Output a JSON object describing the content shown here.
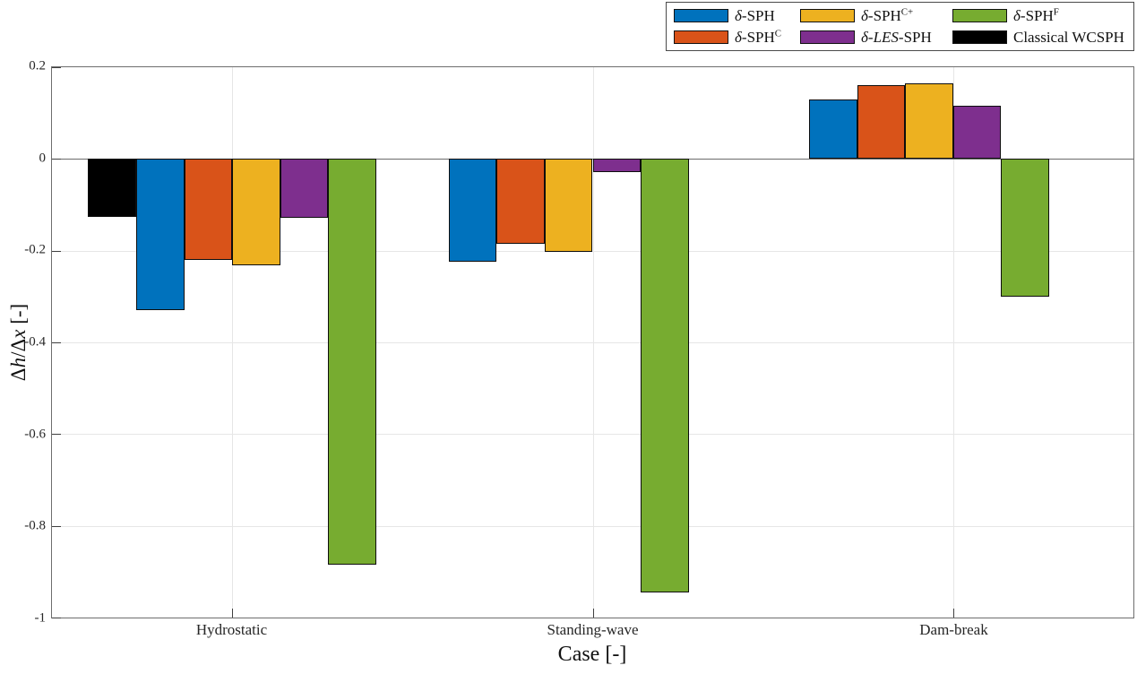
{
  "figure": {
    "xlabel": "Case [-]",
    "ylabel": "Δh/Δx [-]",
    "ylabel_parts": [
      {
        "t": "Δ"
      },
      {
        "t": "h",
        "s": "i"
      },
      {
        "t": "/Δ"
      },
      {
        "t": "x",
        "s": "i"
      },
      {
        "t": " [-]"
      }
    ],
    "background_color": "#ffffff",
    "grid_color": "#e6e6e6",
    "axis_color": "#6e6e6e"
  },
  "legend": {
    "items": [
      {
        "key": "delta-sph",
        "color": "#0072BD",
        "label": "δ-SPH",
        "label_parts": [
          {
            "t": "δ",
            "s": "i"
          },
          {
            "t": "-SPH"
          }
        ]
      },
      {
        "key": "delta-sph-c",
        "color": "#D95319",
        "label": "δ-SPH^C",
        "label_parts": [
          {
            "t": "δ",
            "s": "i"
          },
          {
            "t": "-SPH"
          },
          {
            "t": "C",
            "s": "sup"
          }
        ]
      },
      {
        "key": "delta-sph-c-plus",
        "color": "#EDB120",
        "label": "δ-SPH^C+",
        "label_parts": [
          {
            "t": "δ",
            "s": "i"
          },
          {
            "t": "-SPH"
          },
          {
            "t": "C+",
            "s": "sup"
          }
        ]
      },
      {
        "key": "delta-les-sph",
        "color": "#7E2F8E",
        "label": "δ-LES-SPH",
        "label_parts": [
          {
            "t": "δ",
            "s": "i"
          },
          {
            "t": "-"
          },
          {
            "t": "LES",
            "s": "i"
          },
          {
            "t": "-SPH"
          }
        ]
      },
      {
        "key": "delta-sph-f",
        "color": "#77AC30",
        "label": "δ-SPH^F",
        "label_parts": [
          {
            "t": "δ",
            "s": "i"
          },
          {
            "t": "-SPH"
          },
          {
            "t": "F",
            "s": "sup"
          }
        ]
      },
      {
        "key": "classical-wcsph",
        "color": "#000000",
        "label": "Classical WCSPH",
        "label_parts": [
          {
            "t": "Classical WCSPH"
          }
        ]
      }
    ]
  },
  "chart_data": {
    "type": "bar",
    "title": "",
    "xlabel": "Case [-]",
    "ylabel": "Δh/Δx [-]",
    "ylim": [
      -1,
      0.2
    ],
    "yticks": [
      0.2,
      0,
      -0.2,
      -0.4,
      -0.6,
      -0.8,
      -1
    ],
    "ytick_labels": [
      "0.2",
      "0",
      "-0.2",
      "-0.4",
      "-0.6",
      "-0.8",
      "-1"
    ],
    "categories": [
      "Hydrostatic",
      "Standing-wave",
      "Dam-break"
    ],
    "grid": true,
    "legend_position": "top-right-outside",
    "bar_group_width": 0.8,
    "slots_per_group": 6,
    "series": [
      {
        "name": "δ-SPH",
        "color": "#0072BD",
        "values": [
          -0.33,
          -0.225,
          0.13
        ]
      },
      {
        "name": "δ-SPH^C",
        "color": "#D95319",
        "values": [
          -0.22,
          -0.185,
          0.16
        ]
      },
      {
        "name": "δ-SPH^C+",
        "color": "#EDB120",
        "values": [
          -0.232,
          -0.203,
          0.165
        ]
      },
      {
        "name": "δ-LES-SPH",
        "color": "#7E2F8E",
        "values": [
          -0.128,
          -0.028,
          0.115
        ]
      },
      {
        "name": "δ-SPH^F",
        "color": "#77AC30",
        "values": [
          -0.885,
          -0.945,
          -0.3
        ]
      },
      {
        "name": "Classical WCSPH",
        "color": "#000000",
        "values": [
          -0.127,
          null,
          null
        ]
      }
    ],
    "groups": [
      {
        "label": "Hydrostatic",
        "bars": [
          {
            "key": "classical-wcsph",
            "series": "Classical WCSPH",
            "color": "#000000",
            "slot": 0,
            "value": -0.127
          },
          {
            "key": "delta-sph",
            "series": "δ-SPH",
            "color": "#0072BD",
            "slot": 1,
            "value": -0.33
          },
          {
            "key": "delta-sph-c",
            "series": "δ-SPH^C",
            "color": "#D95319",
            "slot": 2,
            "value": -0.22
          },
          {
            "key": "delta-sph-c-plus",
            "series": "δ-SPH^C+",
            "color": "#EDB120",
            "slot": 3,
            "value": -0.232
          },
          {
            "key": "delta-les-sph",
            "series": "δ-LES-SPH",
            "color": "#7E2F8E",
            "slot": 4,
            "value": -0.128
          },
          {
            "key": "delta-sph-f",
            "series": "δ-SPH^F",
            "color": "#77AC30",
            "slot": 5,
            "value": -0.885
          }
        ]
      },
      {
        "label": "Standing-wave",
        "bars": [
          {
            "key": "delta-sph",
            "series": "δ-SPH",
            "color": "#0072BD",
            "slot": 0,
            "value": -0.225
          },
          {
            "key": "delta-sph-c",
            "series": "δ-SPH^C",
            "color": "#D95319",
            "slot": 1,
            "value": -0.185
          },
          {
            "key": "delta-sph-c-plus",
            "series": "δ-SPH^C+",
            "color": "#EDB120",
            "slot": 2,
            "value": -0.203
          },
          {
            "key": "delta-les-sph",
            "series": "δ-LES-SPH",
            "color": "#7E2F8E",
            "slot": 3,
            "value": -0.028
          },
          {
            "key": "delta-sph-f",
            "series": "δ-SPH^F",
            "color": "#77AC30",
            "slot": 4,
            "value": -0.945
          }
        ]
      },
      {
        "label": "Dam-break",
        "bars": [
          {
            "key": "delta-sph",
            "series": "δ-SPH",
            "color": "#0072BD",
            "slot": 0,
            "value": 0.13
          },
          {
            "key": "delta-sph-c",
            "series": "δ-SPH^C",
            "color": "#D95319",
            "slot": 1,
            "value": 0.16
          },
          {
            "key": "delta-sph-c-plus",
            "series": "δ-SPH^C+",
            "color": "#EDB120",
            "slot": 2,
            "value": 0.165
          },
          {
            "key": "delta-les-sph",
            "series": "δ-LES-SPH",
            "color": "#7E2F8E",
            "slot": 3,
            "value": 0.115
          },
          {
            "key": "delta-sph-f",
            "series": "δ-SPH^F",
            "color": "#77AC30",
            "slot": 4,
            "value": -0.3
          }
        ]
      }
    ]
  }
}
